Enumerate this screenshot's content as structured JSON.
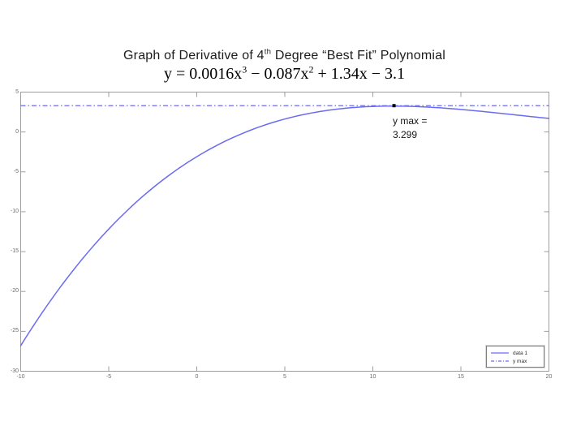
{
  "title": {
    "line1_parts": [
      {
        "text": "Graph of Derivative of 4"
      },
      {
        "text": "th",
        "sup": true
      },
      {
        "text": " Degree “Best Fit” Polynomial"
      }
    ],
    "line2_parts": [
      {
        "text": "y = 0.0016x"
      },
      {
        "text": "3",
        "sup": true
      },
      {
        "text": " − 0.087x"
      },
      {
        "text": "2",
        "sup": true
      },
      {
        "text": " + 1.34x − 3.1"
      }
    ]
  },
  "chart_data": {
    "type": "line",
    "title": "Graph of Derivative of 4th Degree “Best Fit” Polynomial",
    "subtitle_equation": "y = 0.0016x³ − 0.087x² + 1.34x − 3.1",
    "xlim": [
      -10,
      20
    ],
    "ylim": [
      -30,
      5
    ],
    "xticks": [
      -10,
      -5,
      0,
      5,
      10,
      15,
      20
    ],
    "yticks": [
      5,
      0,
      -5,
      -10,
      -15,
      -20,
      -25,
      -30
    ],
    "grid": false,
    "series": [
      {
        "name": "data 1",
        "type": "polynomial",
        "coefficients": {
          "x3": 0.0016,
          "x2": -0.087,
          "x1": 1.34,
          "x0": -3.1
        },
        "x_range": [
          -10,
          20
        ],
        "line_style": "solid",
        "color": "#6b6bf0"
      },
      {
        "name": "y max",
        "type": "hline",
        "y": 3.299,
        "line_style": "dash-dot",
        "color": "#6b6bf0"
      }
    ],
    "max_point": {
      "x": 11.2,
      "y": 3.299,
      "marker": "black-square"
    },
    "annotation": {
      "lines": [
        "y max =",
        "3.299"
      ]
    },
    "legend": {
      "position": "bottom-right",
      "entries": [
        {
          "label": "data 1",
          "style": "solid"
        },
        {
          "label": "y max",
          "style": "dash-dot"
        }
      ]
    },
    "colors": {
      "line": "#6b6bf0",
      "axis": "#9e9e9e",
      "tick_label": "#6b6b6b",
      "annotation_text": "#141414",
      "marker": "#000000"
    }
  }
}
